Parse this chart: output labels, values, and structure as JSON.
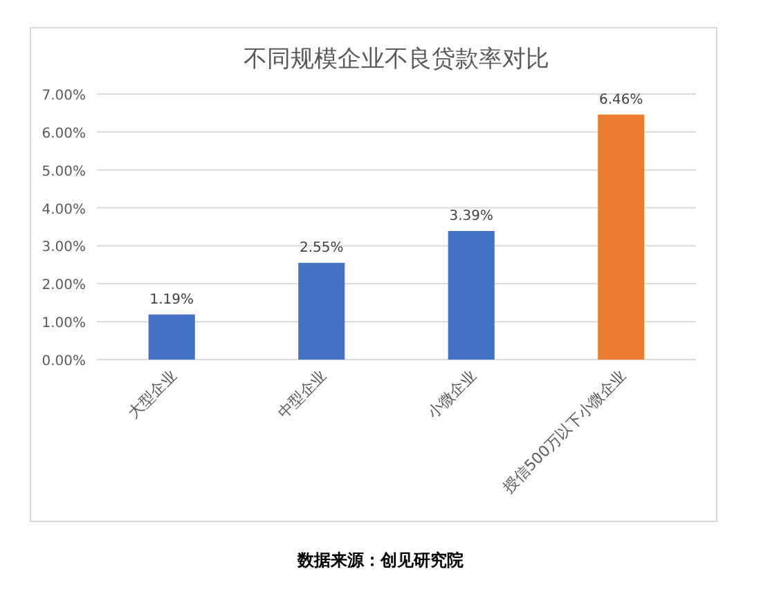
{
  "chart_data": {
    "type": "bar",
    "title": "不同规模企业不良贷款率对比",
    "categories": [
      "大型企业",
      "中型企业",
      "小微企业",
      "授信500万以下小微企业"
    ],
    "values": [
      1.19,
      2.55,
      3.39,
      6.46
    ],
    "colors": [
      "#4472c4",
      "#4472c4",
      "#4472c4",
      "#ed7d31"
    ],
    "value_labels": [
      "1.19%",
      "2.55%",
      "3.39%",
      "6.46%"
    ],
    "ylim": [
      0,
      7
    ],
    "yticks": [
      {
        "value": 0,
        "label": "0.00%"
      },
      {
        "value": 1,
        "label": "1.00%"
      },
      {
        "value": 2,
        "label": "2.00%"
      },
      {
        "value": 3,
        "label": "3.00%"
      },
      {
        "value": 4,
        "label": "4.00%"
      },
      {
        "value": 5,
        "label": "5.00%"
      },
      {
        "value": 6,
        "label": "6.00%"
      },
      {
        "value": 7,
        "label": "7.00%"
      }
    ],
    "grid": "y",
    "annotations": [
      "数据来源：创见研究院"
    ]
  }
}
